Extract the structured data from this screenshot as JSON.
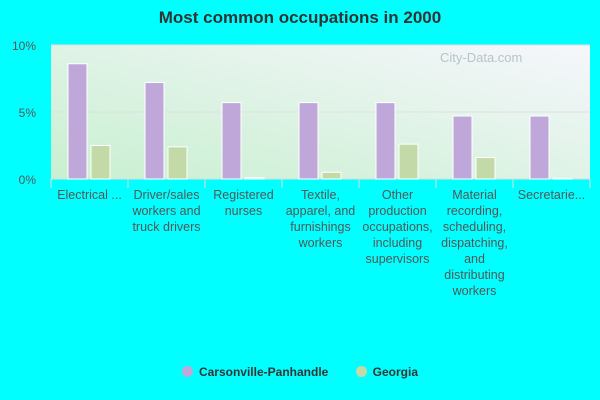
{
  "colors": {
    "background": "#00ffff",
    "series1": "#bfa8d9",
    "series2": "#c4d9a8"
  },
  "watermark": "City-Data.com",
  "chart_data": {
    "type": "bar",
    "title": "Most common occupations in 2000",
    "categories": [
      "Electrical ...",
      "Driver/sales workers and truck drivers",
      "Registered nurses",
      "Textile, apparel, and furnishings workers",
      "Other production occupations, including supervisors",
      "Material recording, scheduling, dispatching, and distributing workers",
      "Secretarie..."
    ],
    "series": [
      {
        "name": "Carsonville-Panhandle",
        "values": [
          8.6,
          7.2,
          5.7,
          5.7,
          5.7,
          4.7,
          4.7
        ]
      },
      {
        "name": "Georgia",
        "values": [
          2.5,
          2.4,
          0.1,
          0.5,
          2.6,
          1.6,
          0.05
        ]
      }
    ],
    "ylim": [
      0,
      10
    ],
    "yticks": [
      "0%",
      "5%",
      "10%"
    ],
    "grid": true,
    "legend": "bottom"
  }
}
